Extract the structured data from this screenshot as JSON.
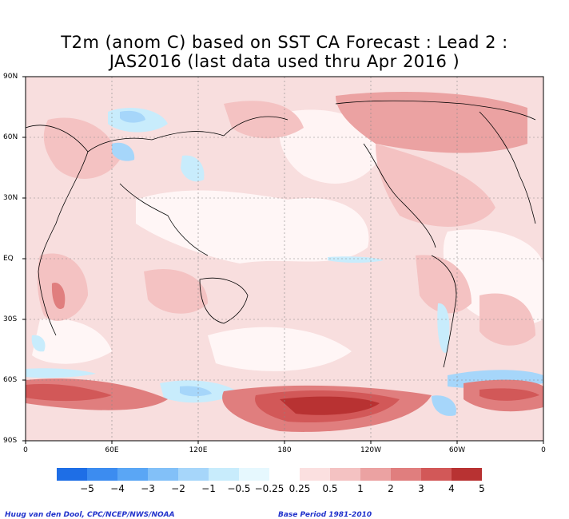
{
  "title_line1": "T2m (anom C) based on SST CA Forecast : Lead 2 :",
  "title_line2": "JAS2016 (last data used thru Apr 2016 )",
  "y_ticks": [
    "90N",
    "60N",
    "30N",
    "EQ",
    "30S",
    "60S",
    "90S"
  ],
  "x_ticks": [
    "0",
    "60E",
    "120E",
    "180",
    "120W",
    "60W",
    "0"
  ],
  "colorbar": {
    "labels": [
      "−5",
      "−4",
      "−3",
      "−2",
      "−1",
      "−0.5",
      "−0.25",
      "0.25",
      "0.5",
      "1",
      "2",
      "3",
      "4",
      "5"
    ],
    "colors": [
      "#1e6ee6",
      "#3c8cf0",
      "#5aa6f5",
      "#82c0f8",
      "#a6d6fa",
      "#c8ecfc",
      "#e6f8fe",
      "#ffffff",
      "#fbe0e0",
      "#f4c2c2",
      "#eba2a2",
      "#e07e7e",
      "#d25858",
      "#b83232"
    ]
  },
  "footer_left": "Huug van den Dool, CPC/NCEP/NWS/NOAA",
  "footer_right": "Base Period 1981-2010"
}
